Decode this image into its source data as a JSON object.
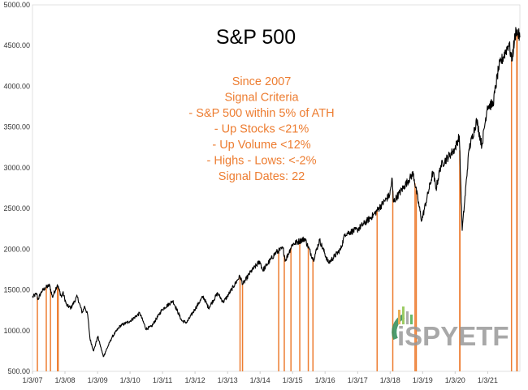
{
  "chart_data": {
    "type": "line",
    "title": "S&P 500",
    "xlabel": "",
    "ylabel": "",
    "ylim": [
      500,
      5000
    ],
    "xlim": [
      "2007-01-03",
      "2021-12-31"
    ],
    "grid": false,
    "legend": "none",
    "y_ticks": [
      "500.00",
      "1000.00",
      "1500.00",
      "2000.00",
      "2500.00",
      "3000.00",
      "3500.00",
      "4000.00",
      "4500.00",
      "5000.00"
    ],
    "x_ticks": [
      "1/3/07",
      "1/3/08",
      "1/3/09",
      "1/3/10",
      "1/3/11",
      "1/3/12",
      "1/3/13",
      "1/3/14",
      "1/3/15",
      "1/3/16",
      "1/3/17",
      "1/3/18",
      "1/3/19",
      "1/3/20",
      "1/3/21"
    ],
    "annotation": {
      "color": "#ed7d31",
      "lines": [
        "Since 2007",
        "Signal Criteria",
        "- S&P 500 within 5% of ATH",
        "- Up Stocks <21%",
        "- Up Volume <12%",
        "- Highs - Lows: <-2%",
        "Signal Dates: 22"
      ]
    },
    "series": [
      {
        "color": "#000000",
        "x": [
          "2007-01-03",
          "2007-02-20",
          "2007-03-05",
          "2007-04-15",
          "2007-06-01",
          "2007-07-15",
          "2007-08-15",
          "2007-10-09",
          "2007-11-26",
          "2007-12-10",
          "2008-01-22",
          "2008-03-10",
          "2008-05-19",
          "2008-07-15",
          "2008-08-11",
          "2008-09-15",
          "2008-10-10",
          "2008-11-20",
          "2009-01-06",
          "2009-03-09",
          "2009-06-15",
          "2009-09-15",
          "2009-12-31",
          "2010-04-23",
          "2010-07-02",
          "2010-09-01",
          "2010-12-31",
          "2011-04-29",
          "2011-08-08",
          "2011-10-03",
          "2011-12-31",
          "2012-04-02",
          "2012-06-04",
          "2012-09-14",
          "2012-11-15",
          "2012-12-31",
          "2013-05-21",
          "2013-06-24",
          "2013-09-18",
          "2013-12-31",
          "2014-02-03",
          "2014-06-30",
          "2014-09-18",
          "2014-10-15",
          "2014-12-31",
          "2015-05-21",
          "2015-08-25",
          "2015-11-03",
          "2016-02-11",
          "2016-06-27",
          "2016-08-15",
          "2016-12-31",
          "2017-06-30",
          "2017-12-31",
          "2018-01-26",
          "2018-02-08",
          "2018-06-15",
          "2018-09-20",
          "2018-12-24",
          "2019-04-30",
          "2019-06-03",
          "2019-07-26",
          "2019-12-31",
          "2020-02-19",
          "2020-03-23",
          "2020-06-08",
          "2020-09-02",
          "2020-10-30",
          "2020-12-31",
          "2021-03-04",
          "2021-05-07",
          "2021-08-31",
          "2021-09-30",
          "2021-11-18",
          "2021-12-31"
        ],
        "values": [
          1410,
          1455,
          1380,
          1480,
          1530,
          1555,
          1410,
          1565,
          1410,
          1470,
          1310,
          1280,
          1420,
          1220,
          1300,
          1190,
          900,
          750,
          930,
          680,
          920,
          1060,
          1115,
          1215,
          1020,
          1050,
          1260,
          1365,
          1120,
          1100,
          1260,
          1420,
          1280,
          1460,
          1350,
          1420,
          1670,
          1570,
          1720,
          1850,
          1740,
          1960,
          2010,
          1860,
          2060,
          2130,
          1870,
          2110,
          1830,
          2000,
          2190,
          2240,
          2420,
          2670,
          2870,
          2580,
          2780,
          2930,
          2350,
          2950,
          2740,
          3025,
          3230,
          3390,
          2230,
          3230,
          3580,
          3270,
          3760,
          3780,
          4230,
          4530,
          4310,
          4700,
          4600
        ]
      }
    ],
    "signal_dates": [
      "2007-02-27",
      "2007-06-07",
      "2007-07-24",
      "2007-10-11",
      "2007-10-19",
      "2013-05-23",
      "2013-06-20",
      "2014-07-31",
      "2014-10-02",
      "2014-12-16",
      "2015-03-25",
      "2015-06-29",
      "2015-08-20",
      "2017-08-10",
      "2018-02-02",
      "2018-10-10",
      "2018-10-24",
      "2020-02-24",
      "2020-02-27",
      "2021-09-28",
      "2021-11-26",
      "2021-12-01"
    ]
  }
}
